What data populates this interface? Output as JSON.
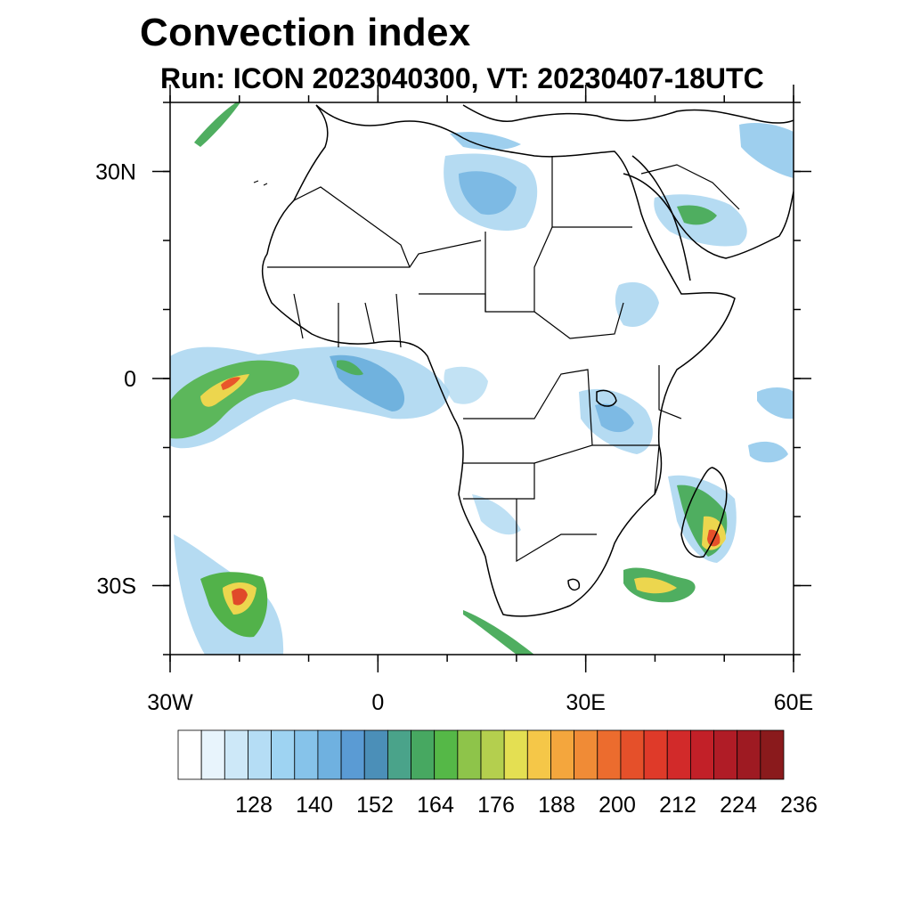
{
  "title": "Convection index",
  "subtitle": "Run: ICON 2023040300,  VT: 20230407-18UTC",
  "map": {
    "lon_range": [
      -30,
      60
    ],
    "lat_range": [
      -40,
      40
    ],
    "x_ticks": [
      {
        "lon": -30,
        "label": "30W"
      },
      {
        "lon": 0,
        "label": "0"
      },
      {
        "lon": 30,
        "label": "30E"
      },
      {
        "lon": 60,
        "label": "60E"
      }
    ],
    "y_ticks": [
      {
        "lat": 30,
        "label": "30N"
      },
      {
        "lat": 0,
        "label": "0"
      },
      {
        "lat": -30,
        "label": "30S"
      }
    ],
    "minor_lon_step": 10,
    "minor_lat_step": 10
  },
  "colorbar": {
    "colors": [
      "#ffffff",
      "#e8f4fc",
      "#cde8f8",
      "#b5ddf5",
      "#9ed3f2",
      "#86c3ea",
      "#6fb1e0",
      "#5a9bd4",
      "#4b8fb8",
      "#4aa38a",
      "#47a861",
      "#55b847",
      "#8ec44a",
      "#b4cf4e",
      "#e4df52",
      "#f5c748",
      "#f4a63d",
      "#f08b36",
      "#ec6c2e",
      "#e5502a",
      "#df3a29",
      "#d22a2a",
      "#c22028",
      "#b01c26",
      "#9e1a22",
      "#8a1a1c"
    ],
    "labels": [
      "128",
      "140",
      "152",
      "164",
      "176",
      "188",
      "200",
      "212",
      "224",
      "236"
    ]
  }
}
